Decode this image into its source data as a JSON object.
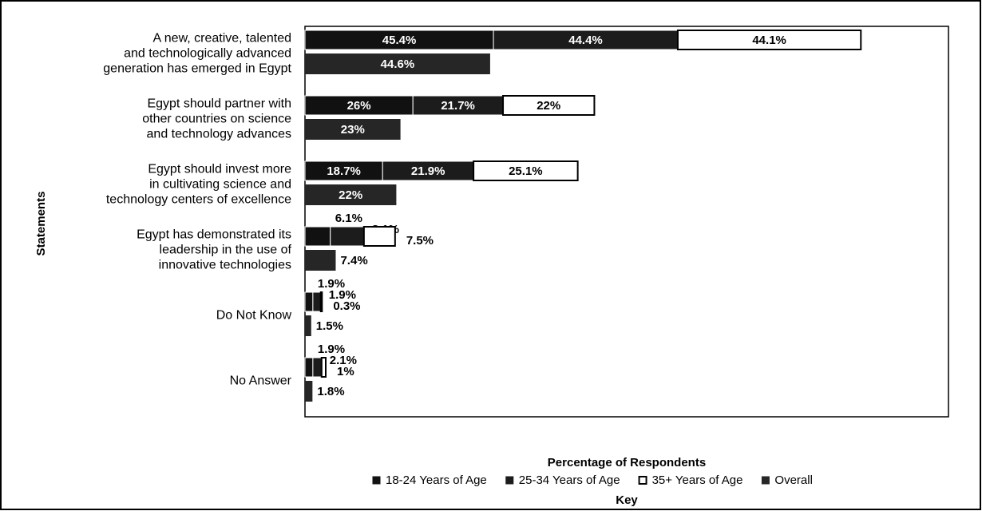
{
  "chart_data": {
    "type": "bar",
    "orientation": "horizontal",
    "stacked": true,
    "ylabel": "Statements",
    "xlabel": "Percentage of Respondents",
    "legend_title": "Key",
    "legend": "bottom",
    "categories": [
      "A new, creative, talented\nand technologically advanced\ngeneration has emerged in Egypt",
      "Egypt should partner with\nother countries on science\nand technology advances",
      "Egypt should invest more\nin cultivating science and\ntechnology centers of excellence",
      "Egypt has demonstrated its\nleadership in the use of\ninnovative technologies",
      "Do Not Know",
      "No Answer"
    ],
    "xlim": [
      0,
      155
    ],
    "series": [
      {
        "name": "18-24 Years of Age",
        "color": "#111111",
        "values": [
          45.4,
          26,
          18.7,
          6.1,
          1.9,
          1.9
        ],
        "value_labels": [
          "45.4%",
          "26%",
          "18.7%",
          "6.1%",
          "1.9%",
          "1.9%"
        ]
      },
      {
        "name": "25-34 Years of Age",
        "color": "#1c1c1c",
        "values": [
          44.4,
          21.7,
          21.9,
          8.1,
          1.9,
          2.1
        ],
        "value_labels": [
          "44.4%",
          "21.7%",
          "21.9%",
          "8.1%",
          "1.9%",
          "2.1%"
        ]
      },
      {
        "name": "35+ Years of Age",
        "color": "#ffffff",
        "values": [
          44.1,
          22,
          25.1,
          7.5,
          0.3,
          1
        ],
        "value_labels": [
          "44.1%",
          "22%",
          "25.1%",
          "7.5%",
          "0.3%",
          "1%"
        ]
      },
      {
        "name": "Overall",
        "color": "#262626",
        "separate": true,
        "values": [
          44.6,
          23,
          22,
          7.4,
          1.5,
          1.8
        ],
        "value_labels": [
          "44.6%",
          "23%",
          "22%",
          "7.4%",
          "1.5%",
          "1.8%"
        ]
      }
    ]
  }
}
